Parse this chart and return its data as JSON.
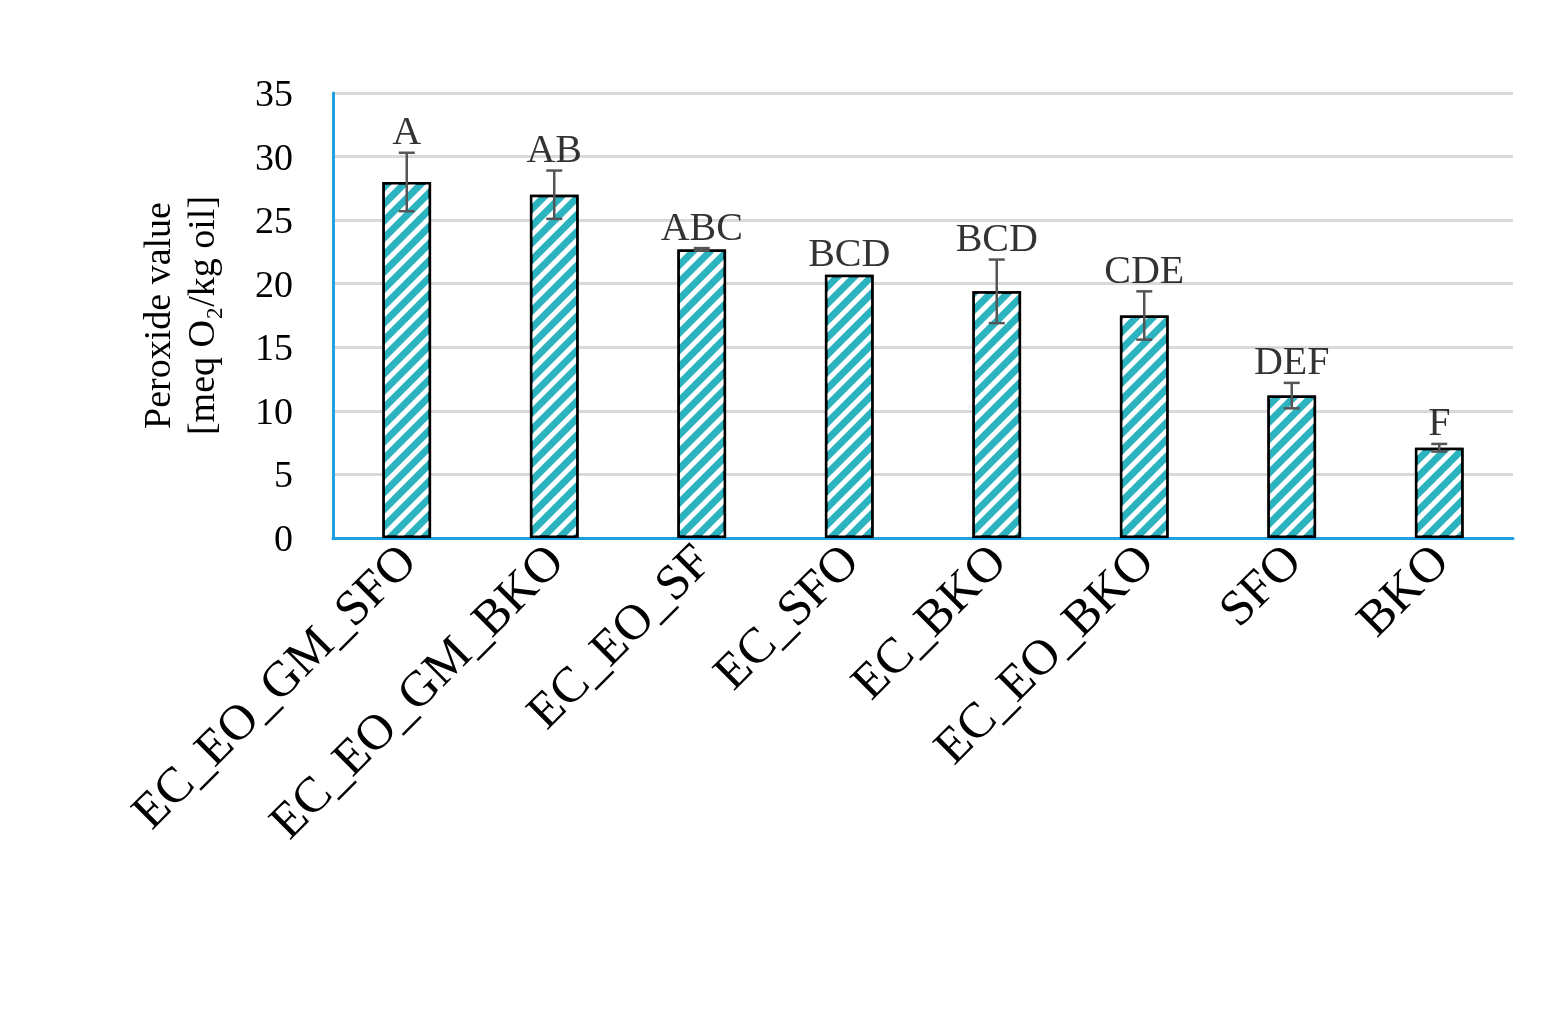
{
  "chart_data": {
    "type": "bar",
    "ylabel": "Peroxide value\n[meq O₂/kg oil]",
    "categories": [
      "EC_EO_GM_SFO",
      "EC_EO_GM_BKO",
      "EC_EO_SF",
      "EC_SFO",
      "EC_BKO",
      "EC_EO_BKO",
      "SFO",
      "BKO"
    ],
    "values": [
      28,
      27,
      22.7,
      20.7,
      19.4,
      17.5,
      11.2,
      7.1
    ],
    "errors": [
      2.3,
      1.9,
      0.1,
      null,
      2.5,
      1.9,
      1.0,
      0.3
    ],
    "color": "#2bb3c0",
    "ylim": [
      0,
      35
    ],
    "yticks": [
      0,
      5,
      10,
      15,
      20,
      25,
      30,
      35
    ],
    "grid": "y",
    "annotations": [
      {
        "text": "A",
        "x": "EC_EO_GM_SFO",
        "y": 30.3
      },
      {
        "text": "AB",
        "x": "EC_EO_GM_BKO",
        "y": 28.9
      },
      {
        "text": "ABC",
        "x": "EC_EO_SF",
        "y": 22.8
      },
      {
        "text": "BCD",
        "x": "EC_SFO",
        "y": 20.7
      },
      {
        "text": "BCD",
        "x": "EC_BKO",
        "y": 21.9
      },
      {
        "text": "CDE",
        "x": "EC_EO_BKO",
        "y": 19.4
      },
      {
        "text": "DEF",
        "x": "SFO",
        "y": 12.2
      },
      {
        "text": "F",
        "x": "BKO",
        "y": 7.4
      }
    ]
  }
}
